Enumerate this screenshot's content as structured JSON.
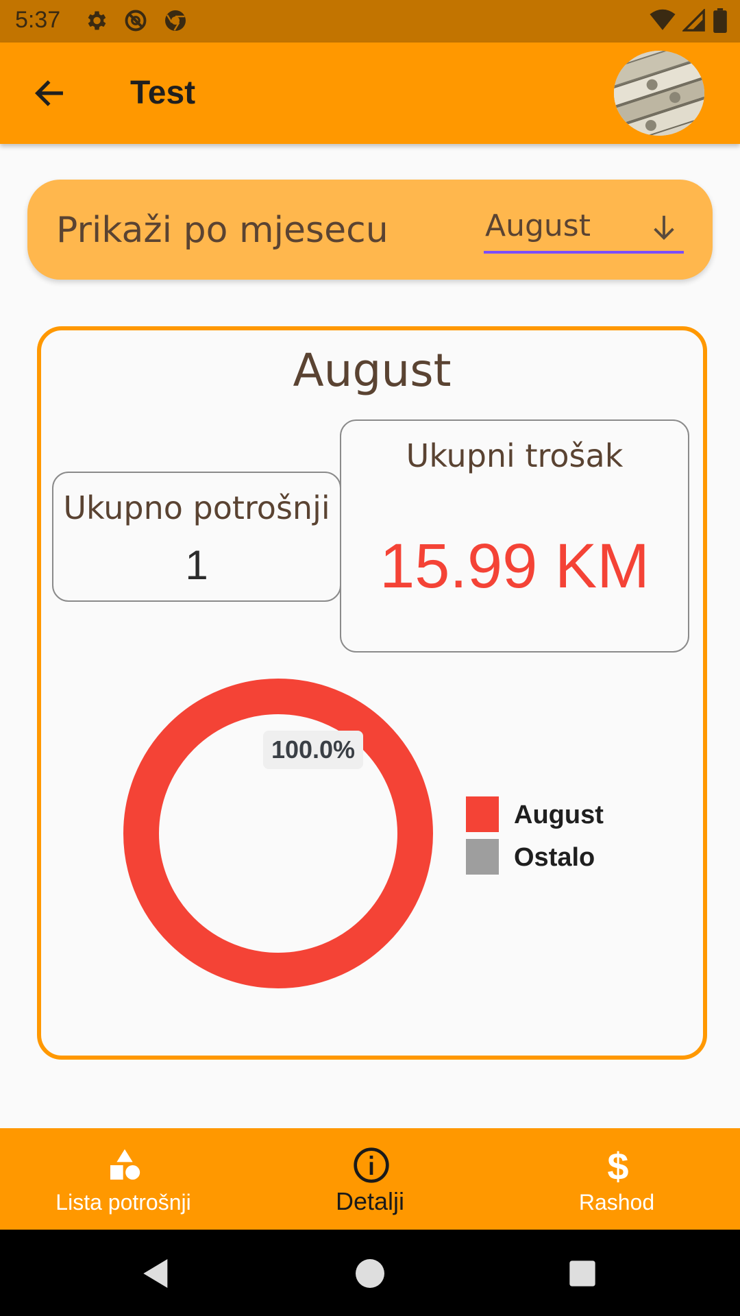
{
  "status_bar": {
    "time": "5:37"
  },
  "app_bar": {
    "title": "Test"
  },
  "filter": {
    "label": "Prikaži po mjesecu",
    "selected_month": "August"
  },
  "summary": {
    "title": "August",
    "count_label": "Ukupno potrošnji",
    "count_value": "1",
    "total_label": "Ukupni trošak",
    "total_value": "15.99 KM"
  },
  "chart_data": {
    "type": "pie",
    "categories": [
      "August",
      "Ostalo"
    ],
    "values": [
      100.0,
      0.0
    ],
    "colors": [
      "#f44336",
      "#9e9e9e"
    ],
    "slice_label": "100.0%",
    "legend": "right"
  },
  "bottom_nav": {
    "items": [
      {
        "label": "Lista potrošnji",
        "icon": "shapes-icon",
        "active": false
      },
      {
        "label": "Detalji",
        "icon": "info-icon",
        "active": true
      },
      {
        "label": "Rashod",
        "icon": "dollar-icon",
        "active": false
      }
    ]
  },
  "colors": {
    "primary": "#ff9800",
    "accent": "#f44336",
    "card": "#ffb74d"
  }
}
